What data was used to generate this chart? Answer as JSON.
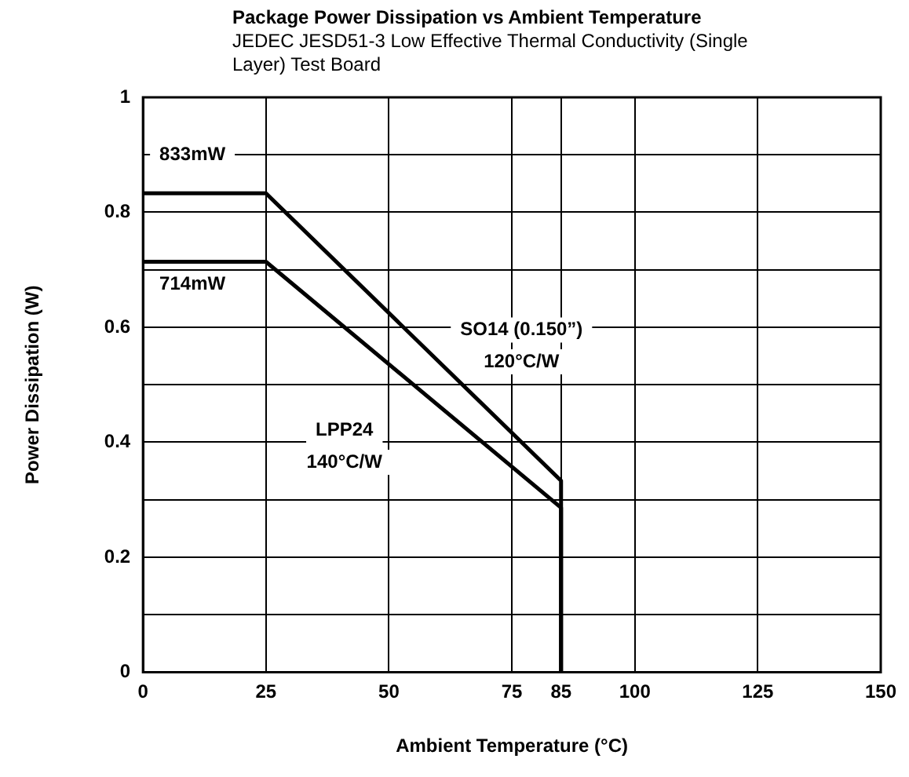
{
  "chart_data": {
    "type": "line",
    "title": "Package Power Dissipation vs Ambient Temperature",
    "subtitle": "JEDEC JESD51-3 Low Effective Thermal Conductivity (Single Layer) Test Board",
    "xlabel": "Ambient Temperature (°C)",
    "ylabel": "Power Dissipation (W)",
    "series": [
      {
        "color": "#000000",
        "x": [
          0,
          25,
          85,
          85
        ],
        "values": [
          0.833,
          0.833,
          0.333,
          0
        ]
      },
      {
        "color": "#000000",
        "x": [
          0,
          25,
          85,
          85
        ],
        "values": [
          0.714,
          0.714,
          0.286,
          0
        ]
      }
    ],
    "xlim": [
      0,
      150
    ],
    "xticks": [
      0,
      25,
      50,
      75,
      85,
      100,
      125,
      150
    ],
    "ylim": [
      0,
      1
    ],
    "yticks": [
      0,
      {
        "value": 0.1,
        "label": null
      },
      0.2,
      {
        "value": 0.3,
        "label": null
      },
      0.4,
      {
        "value": 0.5,
        "label": null
      },
      0.6,
      {
        "value": 0.7,
        "label": null
      },
      0.8,
      {
        "value": 0.9,
        "label": null
      },
      1
    ],
    "grid": true,
    "legend": false,
    "marker": "none",
    "line_style": "solid",
    "annotations": [
      "833mW",
      "714mW",
      "SO14 (0.150”)",
      "120°C/W",
      "LPP24",
      "140°C/W"
    ]
  }
}
